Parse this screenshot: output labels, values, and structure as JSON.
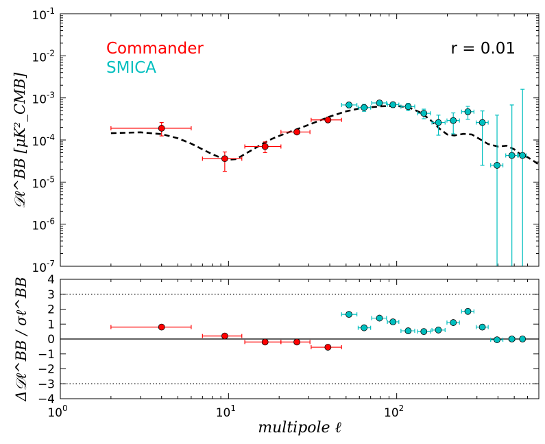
{
  "chart_data": [
    {
      "type": "scatter",
      "panel": "top",
      "xscale": "log",
      "yscale": "log",
      "xlim": [
        1,
        700
      ],
      "ylim": [
        1e-07,
        0.1
      ],
      "ylabel": "𝒟ℓ^BB [μK²_CMB]",
      "ytick_values": [
        1e-07,
        1e-06,
        1e-05,
        0.0001,
        0.001,
        0.01,
        0.1
      ],
      "ytick_labels": [
        {
          "base": "10",
          "exp": "-7"
        },
        {
          "base": "10",
          "exp": "-6"
        },
        {
          "base": "10",
          "exp": "-5"
        },
        {
          "base": "10",
          "exp": "-4"
        },
        {
          "base": "10",
          "exp": "-3"
        },
        {
          "base": "10",
          "exp": "-2"
        },
        {
          "base": "10",
          "exp": "-1"
        }
      ],
      "annotation": "r = 0.01",
      "legend": [
        {
          "name": "Commander",
          "color": "#ff0000"
        },
        {
          "name": "SMICA",
          "color": "#00bfbf"
        }
      ],
      "model_curve": {
        "name": "r = 0.01 model",
        "style": "dashed",
        "color": "#000000",
        "x": [
          2,
          3,
          4,
          5,
          6,
          7,
          8,
          9,
          10,
          11,
          12,
          14,
          16,
          18,
          20,
          25,
          30,
          40,
          50,
          60,
          70,
          80,
          90,
          100,
          110,
          120,
          140,
          160,
          180,
          200,
          220,
          250,
          280,
          300,
          350,
          400,
          450,
          500,
          550,
          600,
          650,
          700
        ],
        "y": [
          0.000145,
          0.000152,
          0.000138,
          0.00011,
          8.2e-05,
          6e-05,
          4.6e-05,
          3.8e-05,
          3.4e-05,
          3.5e-05,
          4.2e-05,
          6e-05,
          8.2e-05,
          0.000105,
          0.000125,
          0.000175,
          0.00023,
          0.00036,
          0.00048,
          0.00056,
          0.0006,
          0.00063,
          0.00064,
          0.00064,
          0.00062,
          0.00058,
          0.00044,
          0.00029,
          0.000185,
          0.000135,
          0.000128,
          0.00014,
          0.000135,
          0.000115,
          8e-05,
          7e-05,
          7.3e-05,
          6e-05,
          4.4e-05,
          3.9e-05,
          3.2e-05,
          2.6e-05
        ]
      },
      "series": [
        {
          "name": "Commander",
          "color": "#ff0000",
          "points": [
            {
              "x": 4,
              "y": 0.00019,
              "xlo": 2,
              "xhi": 6,
              "ylo": 0.000125,
              "yhi": 0.00026
            },
            {
              "x": 9.5,
              "y": 3.6e-05,
              "xlo": 7,
              "xhi": 12,
              "ylo": 1.8e-05,
              "yhi": 5.2e-05
            },
            {
              "x": 16.5,
              "y": 7e-05,
              "xlo": 12.5,
              "xhi": 20.5,
              "ylo": 5e-05,
              "yhi": 9e-05
            },
            {
              "x": 25.5,
              "y": 0.000155,
              "xlo": 20.5,
              "xhi": 30.5,
              "ylo": 0.00014,
              "yhi": 0.00017
            },
            {
              "x": 39,
              "y": 0.0003,
              "xlo": 31,
              "xhi": 47,
              "ylo": 0.000265,
              "yhi": 0.000335
            }
          ]
        },
        {
          "name": "SMICA",
          "color": "#00bfbf",
          "points": [
            {
              "x": 52,
              "y": 0.00068,
              "xlo": 47,
              "xhi": 58,
              "ylo": 0.00058,
              "yhi": 0.00078
            },
            {
              "x": 64,
              "y": 0.00059,
              "xlo": 59,
              "xhi": 70,
              "ylo": 0.00048,
              "yhi": 0.0007
            },
            {
              "x": 79,
              "y": 0.00076,
              "xlo": 71,
              "xhi": 87,
              "ylo": 0.00066,
              "yhi": 0.00086
            },
            {
              "x": 95,
              "y": 0.00069,
              "xlo": 88,
              "xhi": 103,
              "ylo": 0.00059,
              "yhi": 0.00079
            },
            {
              "x": 117,
              "y": 0.00062,
              "xlo": 106,
              "xhi": 128,
              "ylo": 0.0005,
              "yhi": 0.00074
            },
            {
              "x": 145,
              "y": 0.00043,
              "xlo": 133,
              "xhi": 159,
              "ylo": 0.00032,
              "yhi": 0.00054
            },
            {
              "x": 177,
              "y": 0.00026,
              "xlo": 162,
              "xhi": 194,
              "ylo": 0.00013,
              "yhi": 0.00039
            },
            {
              "x": 217,
              "y": 0.00029,
              "xlo": 199,
              "xhi": 236,
              "ylo": 0.00014,
              "yhi": 0.00044
            },
            {
              "x": 265,
              "y": 0.00047,
              "xlo": 243,
              "xhi": 288,
              "ylo": 0.00031,
              "yhi": 0.00063
            },
            {
              "x": 323,
              "y": 0.00026,
              "xlo": 297,
              "xhi": 350,
              "ylo": 2.5e-05,
              "yhi": 0.00049
            },
            {
              "x": 395,
              "y": 2.5e-05,
              "xlo": 362,
              "xhi": 428,
              "ylo": 1e-07,
              "yhi": 0.00039
            },
            {
              "x": 484,
              "y": 4.3e-05,
              "xlo": 445,
              "xhi": 522,
              "ylo": 1e-07,
              "yhi": 0.00068
            },
            {
              "x": 560,
              "y": 4.3e-05,
              "xlo": 530,
              "xhi": 590,
              "ylo": 1e-07,
              "yhi": 0.0016
            }
          ]
        }
      ]
    },
    {
      "type": "scatter",
      "panel": "bottom",
      "xscale": "log",
      "yscale": "linear",
      "xlim": [
        1,
        700
      ],
      "ylim": [
        -4,
        4
      ],
      "xlabel": "multipole ℓ",
      "ylabel": "Δ𝒟ℓ^BB / σℓ^BB",
      "xtick_values": [
        1,
        10,
        100
      ],
      "xtick_labels": [
        {
          "base": "10",
          "exp": "0"
        },
        {
          "base": "10",
          "exp": "1"
        },
        {
          "base": "10",
          "exp": "2"
        }
      ],
      "ytick_values": [
        -4,
        -3,
        -2,
        -1,
        0,
        1,
        2,
        3,
        4
      ],
      "ytick_labels": [
        "−4",
        "−3",
        "−2",
        "−1",
        "0",
        "1",
        "2",
        "3",
        "4"
      ],
      "reference_lines": [
        {
          "y": 3,
          "style": "dotted"
        },
        {
          "y": 0,
          "style": "solid"
        },
        {
          "y": -3,
          "style": "dotted"
        }
      ],
      "series": [
        {
          "name": "Commander",
          "color": "#ff0000",
          "points": [
            {
              "x": 4,
              "y": 0.8,
              "xlo": 2,
              "xhi": 6
            },
            {
              "x": 9.5,
              "y": 0.2,
              "xlo": 7,
              "xhi": 12
            },
            {
              "x": 16.5,
              "y": -0.2,
              "xlo": 12.5,
              "xhi": 20.5
            },
            {
              "x": 25.5,
              "y": -0.2,
              "xlo": 20.5,
              "xhi": 30.5
            },
            {
              "x": 39,
              "y": -0.55,
              "xlo": 31,
              "xhi": 47
            }
          ]
        },
        {
          "name": "SMICA",
          "color": "#00bfbf",
          "points": [
            {
              "x": 52,
              "y": 1.65,
              "xlo": 47,
              "xhi": 58
            },
            {
              "x": 64,
              "y": 0.75,
              "xlo": 59,
              "xhi": 70
            },
            {
              "x": 79,
              "y": 1.4,
              "xlo": 71,
              "xhi": 87
            },
            {
              "x": 95,
              "y": 1.15,
              "xlo": 88,
              "xhi": 103
            },
            {
              "x": 117,
              "y": 0.55,
              "xlo": 106,
              "xhi": 128
            },
            {
              "x": 145,
              "y": 0.5,
              "xlo": 133,
              "xhi": 159
            },
            {
              "x": 177,
              "y": 0.6,
              "xlo": 162,
              "xhi": 194
            },
            {
              "x": 217,
              "y": 1.1,
              "xlo": 199,
              "xhi": 236
            },
            {
              "x": 265,
              "y": 1.85,
              "xlo": 243,
              "xhi": 288
            },
            {
              "x": 323,
              "y": 0.8,
              "xlo": 297,
              "xhi": 350
            },
            {
              "x": 395,
              "y": -0.05,
              "xlo": 362,
              "xhi": 428
            },
            {
              "x": 484,
              "y": 0,
              "xlo": 465,
              "xhi": 503
            },
            {
              "x": 560,
              "y": 0,
              "xlo": 545,
              "xhi": 575
            }
          ]
        }
      ]
    }
  ]
}
